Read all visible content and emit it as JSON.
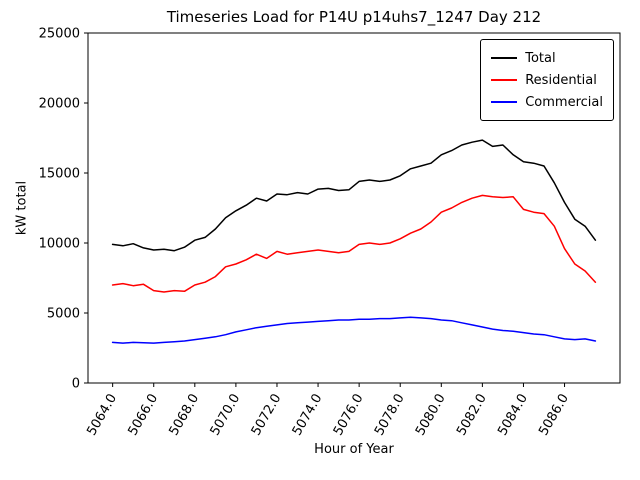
{
  "chart_data": {
    "type": "line",
    "title": "Timeseries Load for P14U p14uhs7_1247  Day 212",
    "xlabel": "Hour of Year",
    "ylabel": "kW total",
    "xlim": [
      5062.8,
      5088.7
    ],
    "ylim": [
      0,
      25000
    ],
    "yticks": [
      0,
      5000,
      10000,
      15000,
      20000,
      25000
    ],
    "ytick_labels": [
      "0",
      "5000",
      "10000",
      "15000",
      "20000",
      "25000"
    ],
    "xticks": [
      5064,
      5066,
      5068,
      5070,
      5072,
      5074,
      5076,
      5078,
      5080,
      5082,
      5084,
      5086
    ],
    "xtick_labels": [
      "5064.0",
      "5066.0",
      "5068.0",
      "5070.0",
      "5072.0",
      "5074.0",
      "5076.0",
      "5078.0",
      "5080.0",
      "5082.0",
      "5084.0",
      "5086.0"
    ],
    "legend_position": "upper right",
    "grid": false,
    "x": [
      5064.0,
      5064.5,
      5065.0,
      5065.5,
      5066.0,
      5066.5,
      5067.0,
      5067.5,
      5068.0,
      5068.5,
      5069.0,
      5069.5,
      5070.0,
      5070.5,
      5071.0,
      5071.5,
      5072.0,
      5072.5,
      5073.0,
      5073.5,
      5074.0,
      5074.5,
      5075.0,
      5075.5,
      5076.0,
      5076.5,
      5077.0,
      5077.5,
      5078.0,
      5078.5,
      5079.0,
      5079.5,
      5080.0,
      5080.5,
      5081.0,
      5081.5,
      5082.0,
      5082.5,
      5083.0,
      5083.5,
      5084.0,
      5084.5,
      5085.0,
      5085.5,
      5086.0,
      5086.5,
      5087.0,
      5087.5
    ],
    "series": [
      {
        "name": "Total",
        "color": "#000000",
        "values": [
          9900,
          9800,
          9950,
          9650,
          9500,
          9550,
          9450,
          9700,
          10200,
          10400,
          11000,
          11800,
          12300,
          12700,
          13200,
          13000,
          13500,
          13450,
          13600,
          13500,
          13850,
          13900,
          13750,
          13800,
          14400,
          14500,
          14400,
          14500,
          14800,
          15300,
          15500,
          15700,
          16300,
          16600,
          17000,
          17200,
          17350,
          16900,
          17000,
          16300,
          15800,
          15700,
          15500,
          14300,
          12900,
          11700,
          11200,
          10200
        ]
      },
      {
        "name": "Residential",
        "color": "#ff0000",
        "values": [
          7000,
          7100,
          6950,
          7050,
          6600,
          6500,
          6600,
          6550,
          7000,
          7200,
          7600,
          8300,
          8500,
          8800,
          9200,
          8900,
          9400,
          9200,
          9300,
          9400,
          9500,
          9400,
          9300,
          9400,
          9900,
          10000,
          9900,
          10000,
          10300,
          10700,
          11000,
          11500,
          12200,
          12500,
          12900,
          13200,
          13400,
          13300,
          13250,
          13300,
          12400,
          12200,
          12100,
          11200,
          9600,
          8500,
          8000,
          7200
        ]
      },
      {
        "name": "Commercial",
        "color": "#0000ff",
        "values": [
          2900,
          2850,
          2900,
          2880,
          2850,
          2900,
          2950,
          3000,
          3100,
          3200,
          3300,
          3450,
          3650,
          3800,
          3950,
          4050,
          4150,
          4250,
          4300,
          4350,
          4400,
          4450,
          4500,
          4500,
          4550,
          4550,
          4600,
          4600,
          4650,
          4700,
          4650,
          4600,
          4500,
          4450,
          4300,
          4150,
          4000,
          3850,
          3750,
          3700,
          3600,
          3500,
          3450,
          3300,
          3150,
          3100,
          3150,
          3000
        ]
      }
    ]
  }
}
